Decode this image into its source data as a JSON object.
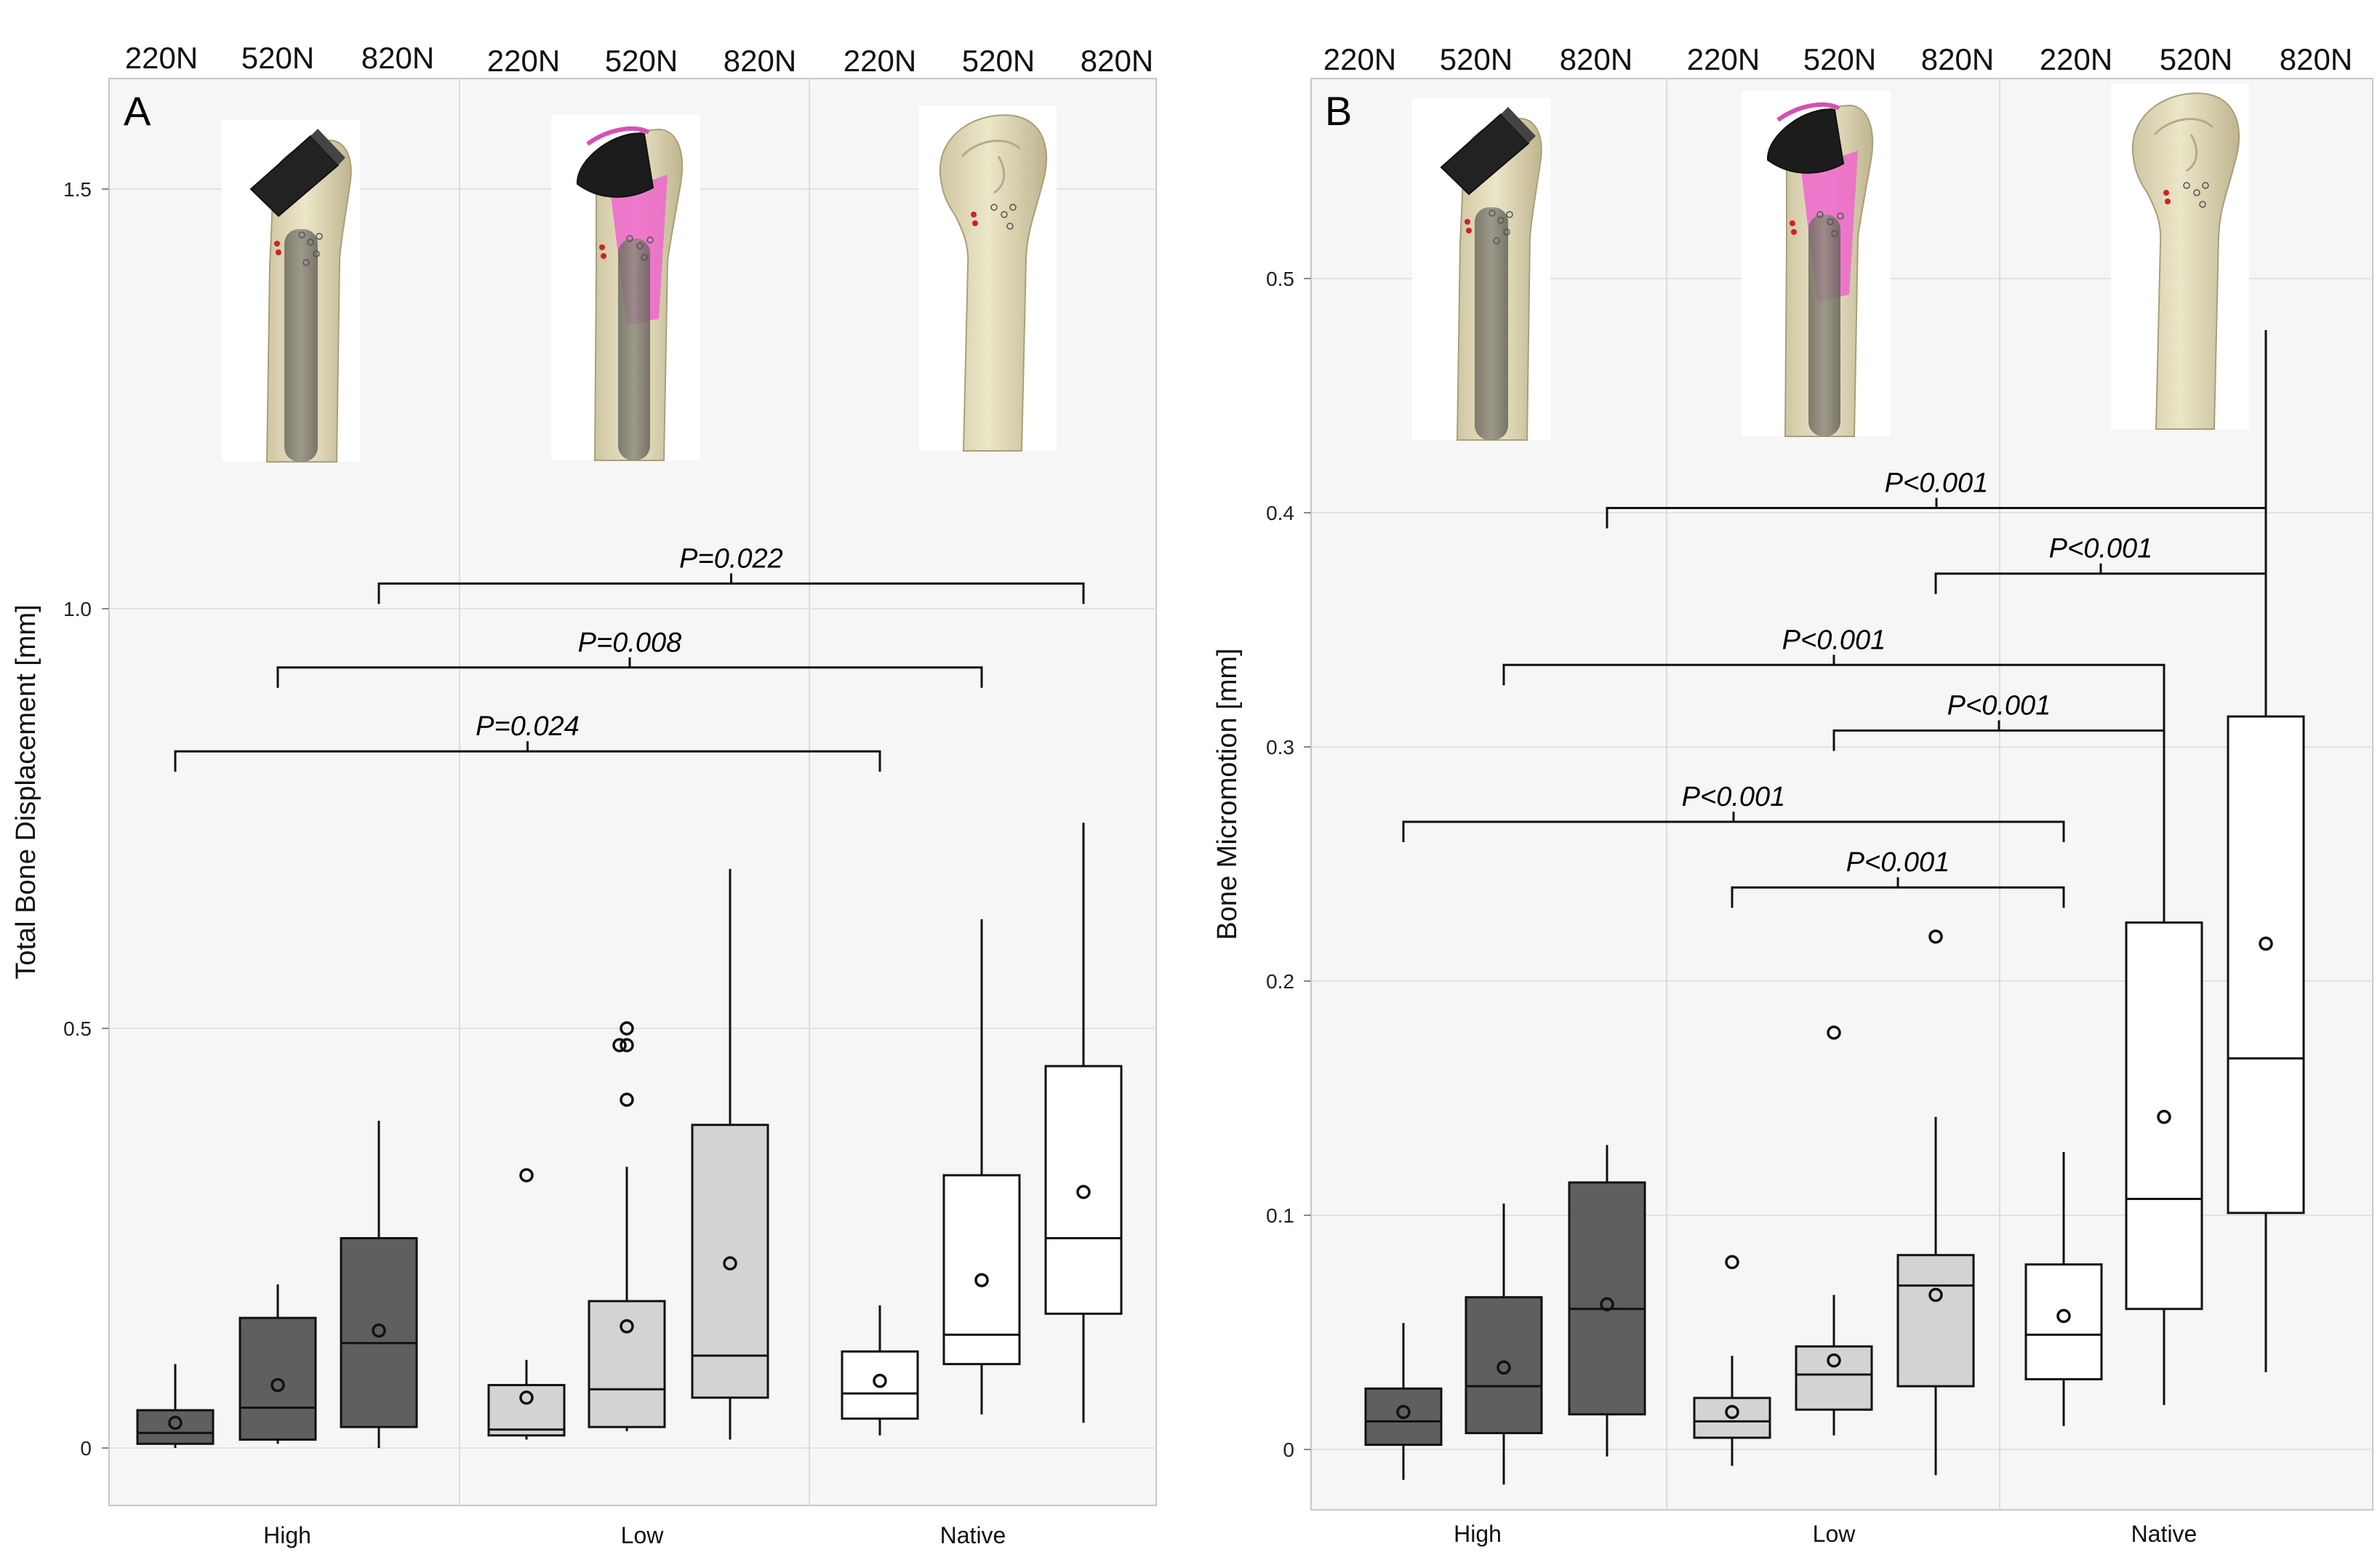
{
  "figure": {
    "load_levels": [
      "220N",
      "520N",
      "820N"
    ]
  },
  "chart_data": [
    {
      "type": "box",
      "panel": "A",
      "ylabel": "Total Bone Displacement [mm]",
      "xlabel": "",
      "ylim": [
        -0.07,
        1.7
      ],
      "yticks": [
        0,
        0.5,
        1.0,
        1.5
      ],
      "ytick_labels": [
        "0",
        "0.5",
        "1.0",
        "1.5"
      ],
      "grid": true,
      "groups": [
        "High",
        "Low",
        "Native"
      ],
      "fill_colors": {
        "High": "#5f5f5f",
        "Low": "#d3d3d3",
        "Native": "#ffffff"
      },
      "boxes": [
        {
          "group": "High",
          "load": "220N",
          "whisker_low": 0.0,
          "q1": 0.005,
          "median": 0.018,
          "q3": 0.045,
          "whisker_high": 0.1,
          "mean": 0.03,
          "outliers": []
        },
        {
          "group": "High",
          "load": "520N",
          "whisker_low": 0.005,
          "q1": 0.01,
          "median": 0.048,
          "q3": 0.155,
          "whisker_high": 0.195,
          "mean": 0.075,
          "outliers": []
        },
        {
          "group": "High",
          "load": "820N",
          "whisker_low": 0.0,
          "q1": 0.025,
          "median": 0.125,
          "q3": 0.25,
          "whisker_high": 0.39,
          "mean": 0.14,
          "outliers": []
        },
        {
          "group": "Low",
          "load": "220N",
          "whisker_low": 0.01,
          "q1": 0.015,
          "median": 0.022,
          "q3": 0.075,
          "whisker_high": 0.105,
          "mean": 0.06,
          "outliers": [
            0.325
          ]
        },
        {
          "group": "Low",
          "load": "520N",
          "whisker_low": 0.02,
          "q1": 0.025,
          "median": 0.07,
          "q3": 0.175,
          "whisker_high": 0.335,
          "mean": 0.145,
          "outliers": [
            0.415,
            0.48,
            0.48,
            0.5
          ]
        },
        {
          "group": "Low",
          "load": "820N",
          "whisker_low": 0.01,
          "q1": 0.06,
          "median": 0.11,
          "q3": 0.385,
          "whisker_high": 0.69,
          "mean": 0.22,
          "outliers": []
        },
        {
          "group": "Native",
          "load": "220N",
          "whisker_low": 0.015,
          "q1": 0.035,
          "median": 0.065,
          "q3": 0.115,
          "whisker_high": 0.17,
          "mean": 0.08,
          "outliers": []
        },
        {
          "group": "Native",
          "load": "520N",
          "whisker_low": 0.04,
          "q1": 0.1,
          "median": 0.135,
          "q3": 0.325,
          "whisker_high": 0.63,
          "mean": 0.2,
          "outliers": []
        },
        {
          "group": "Native",
          "load": "820N",
          "whisker_low": 0.03,
          "q1": 0.16,
          "median": 0.25,
          "q3": 0.455,
          "whisker_high": 0.745,
          "mean": 0.305,
          "outliers": []
        }
      ],
      "significance": [
        {
          "from": "High 220N",
          "to": "Native 220N",
          "label": "P=0.024",
          "y": 0.83
        },
        {
          "from": "High 520N",
          "to": "Native 520N",
          "label": "P=0.008",
          "y": 0.93
        },
        {
          "from": "High 820N",
          "to": "Native 820N",
          "label": "P=0.022",
          "y": 1.03
        }
      ]
    },
    {
      "type": "box",
      "panel": "B",
      "ylabel": "Bone Micromotion [mm]",
      "xlabel": "",
      "ylim": [
        -0.025,
        0.585
      ],
      "yticks": [
        0,
        0.1,
        0.2,
        0.3,
        0.4,
        0.5
      ],
      "ytick_labels": [
        "0",
        "0.1",
        "0.2",
        "0.3",
        "0.4",
        "0.5"
      ],
      "grid": true,
      "groups": [
        "High",
        "Low",
        "Native"
      ],
      "fill_colors": {
        "High": "#5f5f5f",
        "Low": "#d3d3d3",
        "Native": "#ffffff"
      },
      "boxes": [
        {
          "group": "High",
          "load": "220N",
          "whisker_low": -0.013,
          "q1": 0.002,
          "median": 0.012,
          "q3": 0.026,
          "whisker_high": 0.054,
          "mean": 0.016,
          "outliers": []
        },
        {
          "group": "High",
          "load": "520N",
          "whisker_low": -0.015,
          "q1": 0.007,
          "median": 0.027,
          "q3": 0.065,
          "whisker_high": 0.105,
          "mean": 0.035,
          "outliers": []
        },
        {
          "group": "High",
          "load": "820N",
          "whisker_low": -0.003,
          "q1": 0.015,
          "median": 0.06,
          "q3": 0.114,
          "whisker_high": 0.13,
          "mean": 0.062,
          "outliers": []
        },
        {
          "group": "Low",
          "load": "220N",
          "whisker_low": -0.007,
          "q1": 0.005,
          "median": 0.012,
          "q3": 0.022,
          "whisker_high": 0.04,
          "mean": 0.016,
          "outliers": [
            0.08
          ]
        },
        {
          "group": "Low",
          "load": "520N",
          "whisker_low": 0.006,
          "q1": 0.017,
          "median": 0.032,
          "q3": 0.044,
          "whisker_high": 0.066,
          "mean": 0.038,
          "outliers": [
            0.178
          ]
        },
        {
          "group": "Low",
          "load": "820N",
          "whisker_low": -0.011,
          "q1": 0.027,
          "median": 0.07,
          "q3": 0.083,
          "whisker_high": 0.142,
          "mean": 0.066,
          "outliers": [
            0.219
          ]
        },
        {
          "group": "Native",
          "load": "220N",
          "whisker_low": 0.01,
          "q1": 0.03,
          "median": 0.049,
          "q3": 0.079,
          "whisker_high": 0.127,
          "mean": 0.057,
          "outliers": []
        },
        {
          "group": "Native",
          "load": "520N",
          "whisker_low": 0.019,
          "q1": 0.06,
          "median": 0.107,
          "q3": 0.225,
          "whisker_high": 0.331,
          "mean": 0.142,
          "outliers": []
        },
        {
          "group": "Native",
          "load": "820N",
          "whisker_low": 0.033,
          "q1": 0.101,
          "median": 0.167,
          "q3": 0.313,
          "whisker_high": 0.478,
          "mean": 0.216,
          "outliers": []
        }
      ],
      "significance": [
        {
          "from": "Low 220N",
          "to": "Native 220N",
          "label": "P<0.001",
          "y": 0.24
        },
        {
          "from": "High 220N",
          "to": "Native 220N",
          "label": "P<0.001",
          "y": 0.268
        },
        {
          "from": "Low 520N",
          "to": "Native 520N",
          "label": "P<0.001",
          "y": 0.307
        },
        {
          "from": "High 520N",
          "to": "Native 520N",
          "label": "P<0.001",
          "y": 0.335
        },
        {
          "from": "Low 820N",
          "to": "Native 820N",
          "label": "P<0.001",
          "y": 0.374
        },
        {
          "from": "High 820N",
          "to": "Native 820N",
          "label": "P<0.001",
          "y": 0.402
        }
      ]
    }
  ]
}
